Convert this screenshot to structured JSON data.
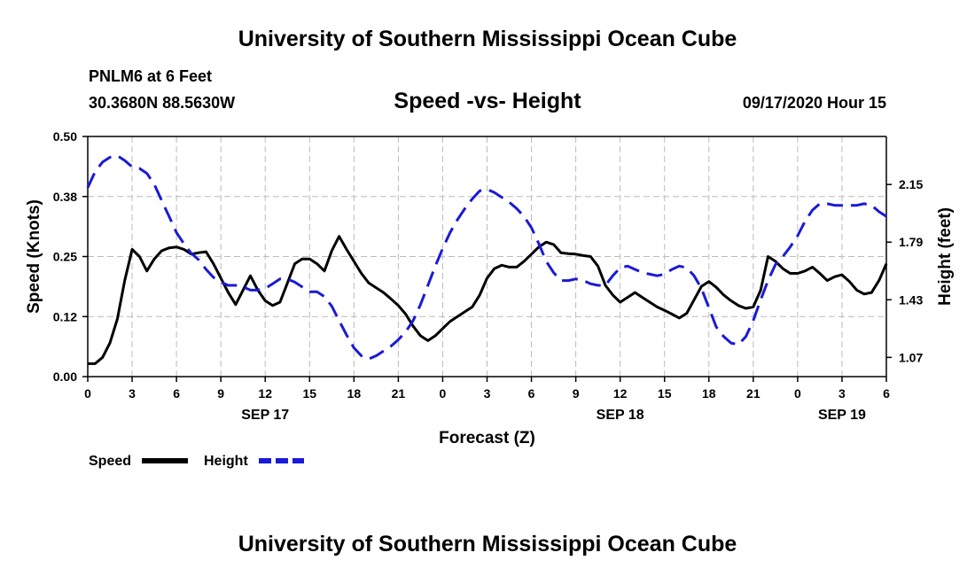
{
  "page": {
    "title_top": "University of Southern Mississippi Ocean Cube",
    "title_bottom": "University of Southern Mississippi Ocean Cube",
    "station_line": "PNLM6 at 6 Feet",
    "coords_line": "30.3680N 88.5630W",
    "datetime_line": "09/17/2020 Hour 15"
  },
  "chart_data": {
    "type": "line",
    "title": "Speed -vs- Height",
    "xlabel": "Forecast (Z)",
    "ylabel": "Speed (Knots)",
    "y2label": "Height (feet)",
    "x_range_hours": [
      0,
      54
    ],
    "ylim": [
      0,
      0.5
    ],
    "y2lim": [
      0.95,
      2.45
    ],
    "grid": true,
    "y_ticks": [
      0,
      0.125,
      0.25,
      0.375,
      0.5
    ],
    "y_tick_labels": [
      "0.00",
      "0.12",
      "0.25",
      "0.38",
      "0.50"
    ],
    "y2_ticks": [
      1.07,
      1.43,
      1.79,
      2.15
    ],
    "y2_tick_labels": [
      "1.07",
      "1.43",
      "1.79",
      "2.15"
    ],
    "x_ticks": [
      0,
      3,
      6,
      9,
      12,
      15,
      18,
      21,
      24,
      27,
      30,
      33,
      36,
      39,
      42,
      45,
      48,
      51,
      54
    ],
    "x_tick_labels": [
      "0",
      "3",
      "6",
      "9",
      "12",
      "15",
      "18",
      "21",
      "0",
      "3",
      "6",
      "9",
      "12",
      "15",
      "18",
      "21",
      "0",
      "3",
      "6"
    ],
    "day_labels": [
      {
        "hour": 12,
        "label": "SEP 17"
      },
      {
        "hour": 36,
        "label": "SEP 18"
      },
      {
        "hour": 51,
        "label": "SEP 19"
      }
    ],
    "series": [
      {
        "name": "Speed",
        "axis": "left",
        "color": "#000000",
        "style": "solid",
        "x": [
          0,
          0.5,
          1,
          1.5,
          2,
          2.5,
          3,
          3.5,
          4,
          4.5,
          5,
          5.5,
          6,
          6.5,
          7,
          7.5,
          8,
          8.5,
          9,
          9.5,
          10,
          10.5,
          11,
          11.5,
          12,
          12.5,
          13,
          13.5,
          14,
          14.5,
          15,
          15.5,
          16,
          16.5,
          17,
          17.5,
          18,
          18.5,
          19,
          19.5,
          20,
          20.5,
          21,
          21.5,
          22,
          22.5,
          23,
          23.5,
          24,
          24.5,
          25,
          25.5,
          26,
          26.5,
          27,
          27.5,
          28,
          28.5,
          29,
          29.5,
          30,
          30.5,
          31,
          31.5,
          32,
          32.5,
          33,
          33.5,
          34,
          34.5,
          35,
          35.5,
          36,
          36.5,
          37,
          37.5,
          38,
          38.5,
          39,
          39.5,
          40,
          40.5,
          41,
          41.5,
          42,
          42.5,
          43,
          43.5,
          44,
          44.5,
          45,
          45.5,
          46,
          46.5,
          47,
          47.5,
          48,
          48.5,
          49,
          49.5,
          50,
          50.5,
          51,
          51.5,
          52,
          52.5,
          53,
          53.5,
          54
        ],
        "values": [
          0.027,
          0.027,
          0.04,
          0.07,
          0.12,
          0.2,
          0.265,
          0.25,
          0.22,
          0.245,
          0.262,
          0.268,
          0.27,
          0.265,
          0.255,
          0.258,
          0.26,
          0.235,
          0.205,
          0.175,
          0.15,
          0.18,
          0.21,
          0.18,
          0.158,
          0.148,
          0.155,
          0.195,
          0.235,
          0.245,
          0.245,
          0.235,
          0.22,
          0.262,
          0.292,
          0.265,
          0.24,
          0.215,
          0.195,
          0.185,
          0.175,
          0.162,
          0.148,
          0.13,
          0.105,
          0.085,
          0.075,
          0.085,
          0.1,
          0.115,
          0.125,
          0.135,
          0.145,
          0.17,
          0.205,
          0.225,
          0.232,
          0.228,
          0.228,
          0.24,
          0.255,
          0.27,
          0.28,
          0.275,
          0.258,
          0.256,
          0.255,
          0.252,
          0.25,
          0.23,
          0.19,
          0.17,
          0.155,
          0.165,
          0.175,
          0.165,
          0.155,
          0.145,
          0.138,
          0.13,
          0.122,
          0.132,
          0.16,
          0.188,
          0.198,
          0.186,
          0.17,
          0.158,
          0.148,
          0.142,
          0.145,
          0.18,
          0.25,
          0.24,
          0.225,
          0.215,
          0.215,
          0.22,
          0.228,
          0.215,
          0.2,
          0.208,
          0.212,
          0.198,
          0.18,
          0.172,
          0.175,
          0.2,
          0.235
        ]
      },
      {
        "name": "Height",
        "axis": "right",
        "color": "#1a1ad6",
        "style": "dashed",
        "x": [
          0,
          0.5,
          1,
          1.5,
          2,
          2.5,
          3,
          3.5,
          4,
          4.5,
          5,
          5.5,
          6,
          6.5,
          7,
          7.5,
          8,
          8.5,
          9,
          9.5,
          10,
          10.5,
          11,
          11.5,
          12,
          12.5,
          13,
          13.5,
          14,
          14.5,
          15,
          15.5,
          16,
          16.5,
          17,
          17.5,
          18,
          18.5,
          19,
          19.5,
          20,
          20.5,
          21,
          21.5,
          22,
          22.5,
          23,
          23.5,
          24,
          24.5,
          25,
          25.5,
          26,
          26.5,
          27,
          27.5,
          28,
          28.5,
          29,
          29.5,
          30,
          30.5,
          31,
          31.5,
          32,
          32.5,
          33,
          33.5,
          34,
          34.5,
          35,
          35.5,
          36,
          36.5,
          37,
          37.5,
          38,
          38.5,
          39,
          39.5,
          40,
          40.5,
          41,
          41.5,
          42,
          42.5,
          43,
          43.5,
          44,
          44.5,
          45,
          45.5,
          46,
          46.5,
          47,
          47.5,
          48,
          48.5,
          49,
          49.5,
          50,
          50.5,
          51,
          51.5,
          52,
          52.5,
          53,
          53.5,
          54
        ],
        "values": [
          2.13,
          2.23,
          2.29,
          2.32,
          2.33,
          2.3,
          2.26,
          2.25,
          2.22,
          2.15,
          2.05,
          1.95,
          1.85,
          1.78,
          1.72,
          1.68,
          1.62,
          1.57,
          1.54,
          1.52,
          1.52,
          1.51,
          1.49,
          1.49,
          1.5,
          1.53,
          1.56,
          1.56,
          1.54,
          1.51,
          1.48,
          1.48,
          1.45,
          1.39,
          1.3,
          1.21,
          1.13,
          1.08,
          1.06,
          1.08,
          1.11,
          1.14,
          1.18,
          1.23,
          1.3,
          1.4,
          1.52,
          1.64,
          1.75,
          1.85,
          1.93,
          2.0,
          2.06,
          2.11,
          2.12,
          2.1,
          2.07,
          2.04,
          2.0,
          1.95,
          1.88,
          1.78,
          1.67,
          1.6,
          1.55,
          1.55,
          1.56,
          1.55,
          1.53,
          1.52,
          1.52,
          1.58,
          1.63,
          1.64,
          1.62,
          1.6,
          1.59,
          1.58,
          1.59,
          1.62,
          1.64,
          1.63,
          1.58,
          1.5,
          1.38,
          1.26,
          1.2,
          1.16,
          1.15,
          1.2,
          1.3,
          1.43,
          1.55,
          1.65,
          1.7,
          1.76,
          1.83,
          1.92,
          1.99,
          2.03,
          2.03,
          2.02,
          2.02,
          2.02,
          2.02,
          2.03,
          2.02,
          1.98,
          1.95
        ]
      }
    ],
    "legend": {
      "position": "bottom-left",
      "entries": [
        {
          "label": "Speed",
          "series": "Speed"
        },
        {
          "label": "Height",
          "series": "Height"
        }
      ]
    }
  }
}
